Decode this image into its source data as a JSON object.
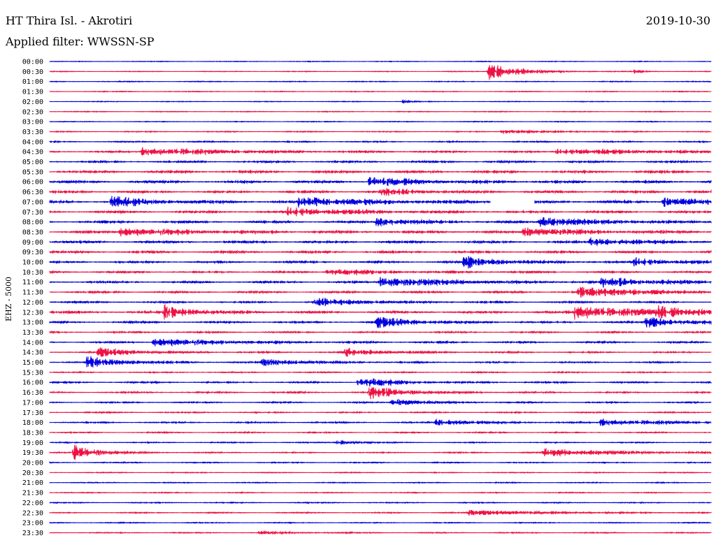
{
  "header": {
    "station": "HT Thira Isl. - Akrotiri",
    "date": "2019-10-30",
    "filter": "Applied filter: WWSSN-SP"
  },
  "chart_data": {
    "type": "line",
    "title": "HT Thira Isl. - Akrotiri",
    "ylabel": "EHZ - 5000",
    "row_labels": [
      "00:00",
      "00:30",
      "01:00",
      "01:30",
      "02:00",
      "02:30",
      "03:00",
      "03:30",
      "04:00",
      "04:30",
      "05:00",
      "05:30",
      "06:00",
      "06:30",
      "07:00",
      "07:30",
      "08:00",
      "08:30",
      "09:00",
      "09:30",
      "10:00",
      "10:30",
      "11:00",
      "11:30",
      "12:00",
      "12:30",
      "13:00",
      "13:30",
      "14:00",
      "14:30",
      "15:00",
      "15:30",
      "16:00",
      "16:30",
      "17:00",
      "17:30",
      "18:00",
      "18:30",
      "19:00",
      "19:30",
      "20:00",
      "20:30",
      "21:00",
      "21:30",
      "22:00",
      "22:30",
      "23:00",
      "23:30"
    ],
    "trace_colors": [
      "#0000dd",
      "#ee1144"
    ],
    "x_range_minutes": [
      0,
      30
    ],
    "data_gap": {
      "row": "07:00",
      "minutes": [
        20.0,
        22.0
      ]
    },
    "noise_level": [
      0.5,
      0.5,
      0.6,
      0.6,
      0.5,
      0.6,
      0.6,
      0.7,
      1.0,
      1.3,
      1.6,
      2.2,
      2.0,
      2.0,
      2.3,
      1.8,
      1.8,
      2.0,
      1.9,
      1.9,
      1.6,
      1.5,
      1.6,
      1.5,
      1.4,
      2.0,
      1.5,
      1.2,
      1.3,
      1.2,
      1.1,
      0.9,
      1.2,
      1.2,
      1.0,
      1.0,
      1.1,
      0.9,
      0.8,
      0.9,
      0.8,
      0.7,
      0.7,
      0.7,
      0.8,
      0.8,
      0.7,
      0.8
    ],
    "events": [
      {
        "row": "00:30",
        "minute": 19.9,
        "amplitude": 14,
        "decay": 1.2
      },
      {
        "row": "00:30",
        "minute": 26.5,
        "amplitude": 3,
        "decay": 0.4
      },
      {
        "row": "02:00",
        "minute": 16.0,
        "amplitude": 2,
        "decay": 0.5
      },
      {
        "row": "03:30",
        "minute": 20.5,
        "amplitude": 3,
        "decay": 2.0
      },
      {
        "row": "04:30",
        "minute": 4.2,
        "amplitude": 6,
        "decay": 3.5
      },
      {
        "row": "04:30",
        "minute": 23.0,
        "amplitude": 4,
        "decay": 4.0
      },
      {
        "row": "06:00",
        "minute": 14.5,
        "amplitude": 7,
        "decay": 2.0
      },
      {
        "row": "06:30",
        "minute": 15.0,
        "amplitude": 5,
        "decay": 1.5
      },
      {
        "row": "07:00",
        "minute": 2.8,
        "amplitude": 8,
        "decay": 1.5
      },
      {
        "row": "07:00",
        "minute": 11.3,
        "amplitude": 7,
        "decay": 3.0
      },
      {
        "row": "07:00",
        "minute": 27.8,
        "amplitude": 7,
        "decay": 1.5
      },
      {
        "row": "07:30",
        "minute": 10.8,
        "amplitude": 6,
        "decay": 2.5
      },
      {
        "row": "08:00",
        "minute": 14.8,
        "amplitude": 6,
        "decay": 1.5
      },
      {
        "row": "08:00",
        "minute": 22.2,
        "amplitude": 7,
        "decay": 2.5
      },
      {
        "row": "08:30",
        "minute": 3.2,
        "amplitude": 6,
        "decay": 3.0
      },
      {
        "row": "08:30",
        "minute": 21.5,
        "amplitude": 6,
        "decay": 2.5
      },
      {
        "row": "09:00",
        "minute": 24.5,
        "amplitude": 6,
        "decay": 2.0
      },
      {
        "row": "10:00",
        "minute": 18.8,
        "amplitude": 9,
        "decay": 1.5
      },
      {
        "row": "10:00",
        "minute": 26.5,
        "amplitude": 6,
        "decay": 1.5
      },
      {
        "row": "10:30",
        "minute": 12.5,
        "amplitude": 5,
        "decay": 2.0
      },
      {
        "row": "11:00",
        "minute": 15.0,
        "amplitude": 7,
        "decay": 3.0
      },
      {
        "row": "11:00",
        "minute": 25.0,
        "amplitude": 7,
        "decay": 2.5
      },
      {
        "row": "11:30",
        "minute": 24.0,
        "amplitude": 7,
        "decay": 3.0
      },
      {
        "row": "12:00",
        "minute": 12.0,
        "amplitude": 6,
        "decay": 2.0
      },
      {
        "row": "12:30",
        "minute": 5.2,
        "amplitude": 11,
        "decay": 1.2
      },
      {
        "row": "12:30",
        "minute": 23.8,
        "amplitude": 11,
        "decay": 2.5
      },
      {
        "row": "12:30",
        "minute": 27.5,
        "amplitude": 7,
        "decay": 2.0
      },
      {
        "row": "13:00",
        "minute": 14.8,
        "amplitude": 8,
        "decay": 1.5
      },
      {
        "row": "13:00",
        "minute": 27.0,
        "amplitude": 8,
        "decay": 1.5
      },
      {
        "row": "14:00",
        "minute": 4.7,
        "amplitude": 6,
        "decay": 3.0
      },
      {
        "row": "14:30",
        "minute": 2.2,
        "amplitude": 7,
        "decay": 1.5
      },
      {
        "row": "14:30",
        "minute": 13.4,
        "amplitude": 6,
        "decay": 1.5
      },
      {
        "row": "15:00",
        "minute": 1.7,
        "amplitude": 9,
        "decay": 1.5
      },
      {
        "row": "15:00",
        "minute": 9.6,
        "amplitude": 5,
        "decay": 2.0
      },
      {
        "row": "16:00",
        "minute": 14.0,
        "amplitude": 8,
        "decay": 1.5
      },
      {
        "row": "16:30",
        "minute": 14.5,
        "amplitude": 10,
        "decay": 1.5
      },
      {
        "row": "17:00",
        "minute": 15.5,
        "amplitude": 5,
        "decay": 1.5
      },
      {
        "row": "18:00",
        "minute": 17.5,
        "amplitude": 5,
        "decay": 1.5
      },
      {
        "row": "18:00",
        "minute": 25.0,
        "amplitude": 5,
        "decay": 2.5
      },
      {
        "row": "19:00",
        "minute": 13.0,
        "amplitude": 4,
        "decay": 0.8
      },
      {
        "row": "19:30",
        "minute": 1.1,
        "amplitude": 12,
        "decay": 1.0
      },
      {
        "row": "19:30",
        "minute": 22.4,
        "amplitude": 6,
        "decay": 3.0
      },
      {
        "row": "22:30",
        "minute": 19.0,
        "amplitude": 4,
        "decay": 3.0
      },
      {
        "row": "23:30",
        "minute": 9.5,
        "amplitude": 2,
        "decay": 1.5
      }
    ]
  }
}
